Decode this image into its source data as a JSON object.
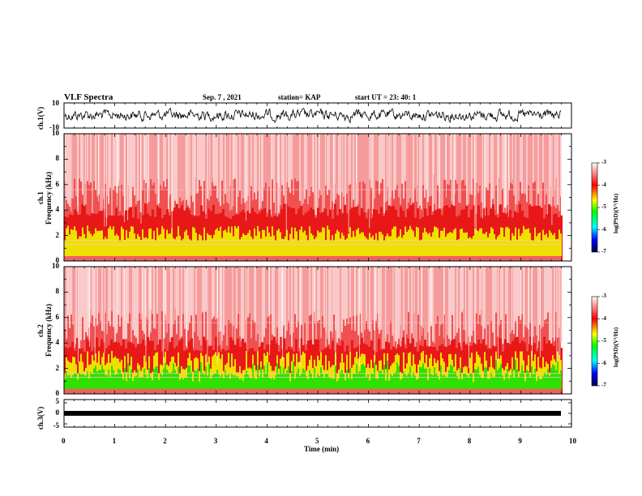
{
  "header": {
    "title": "VLF Spectra",
    "date": "Sep. 7  , 2021",
    "station": "station= KAP",
    "start": "start  UT  =   23: 40: 1"
  },
  "panels": {
    "ch1_label": "ch.1(V)",
    "spec1_label_a": "ch.1",
    "spec1_label_b": "Frequency  (kHz)",
    "spec2_label_a": "ch.2",
    "spec2_label_b": "Frequency  (kHz)",
    "ch3_label": "ch.3(V)",
    "x_label": "Time  (min)",
    "colorbar_label": "log(PSD)(V²/Hz)"
  },
  "colors": {
    "spec_bg": "#f05050",
    "red": "#e81818",
    "yellow": "#f0e000",
    "green": "#30e000",
    "white": "#ffffff"
  },
  "chart_data": [
    {
      "type": "line",
      "name": "ch1-waveform",
      "ylim": [
        -10,
        10
      ],
      "yticks": [
        "10",
        "-10"
      ],
      "xlim": [
        0,
        10
      ]
    },
    {
      "type": "heatmap",
      "name": "ch1-spectrogram",
      "xlim": [
        0,
        10
      ],
      "ylim": [
        0,
        10
      ],
      "yticks": [
        "0",
        "2",
        "4",
        "6",
        "8",
        "10"
      ]
    },
    {
      "type": "heatmap",
      "name": "ch2-spectrogram",
      "xlim": [
        0,
        10
      ],
      "ylim": [
        0,
        10
      ],
      "yticks": [
        "0",
        "2",
        "4",
        "6",
        "8",
        "10"
      ]
    },
    {
      "type": "line",
      "name": "ch3-waveform",
      "ylim": [
        -5,
        5
      ],
      "yticks": [
        "5",
        "0",
        "-5"
      ],
      "xlim": [
        0,
        10
      ]
    },
    {
      "type": "heatmap",
      "name": "colorbar",
      "ticks": [
        "-3",
        "-4",
        "-5",
        "-6",
        "-7"
      ],
      "range": [
        -7,
        -3
      ]
    }
  ],
  "xaxis": {
    "ticks": [
      "0",
      "1",
      "2",
      "3",
      "4",
      "5",
      "6",
      "7",
      "8",
      "9",
      "10"
    ]
  }
}
